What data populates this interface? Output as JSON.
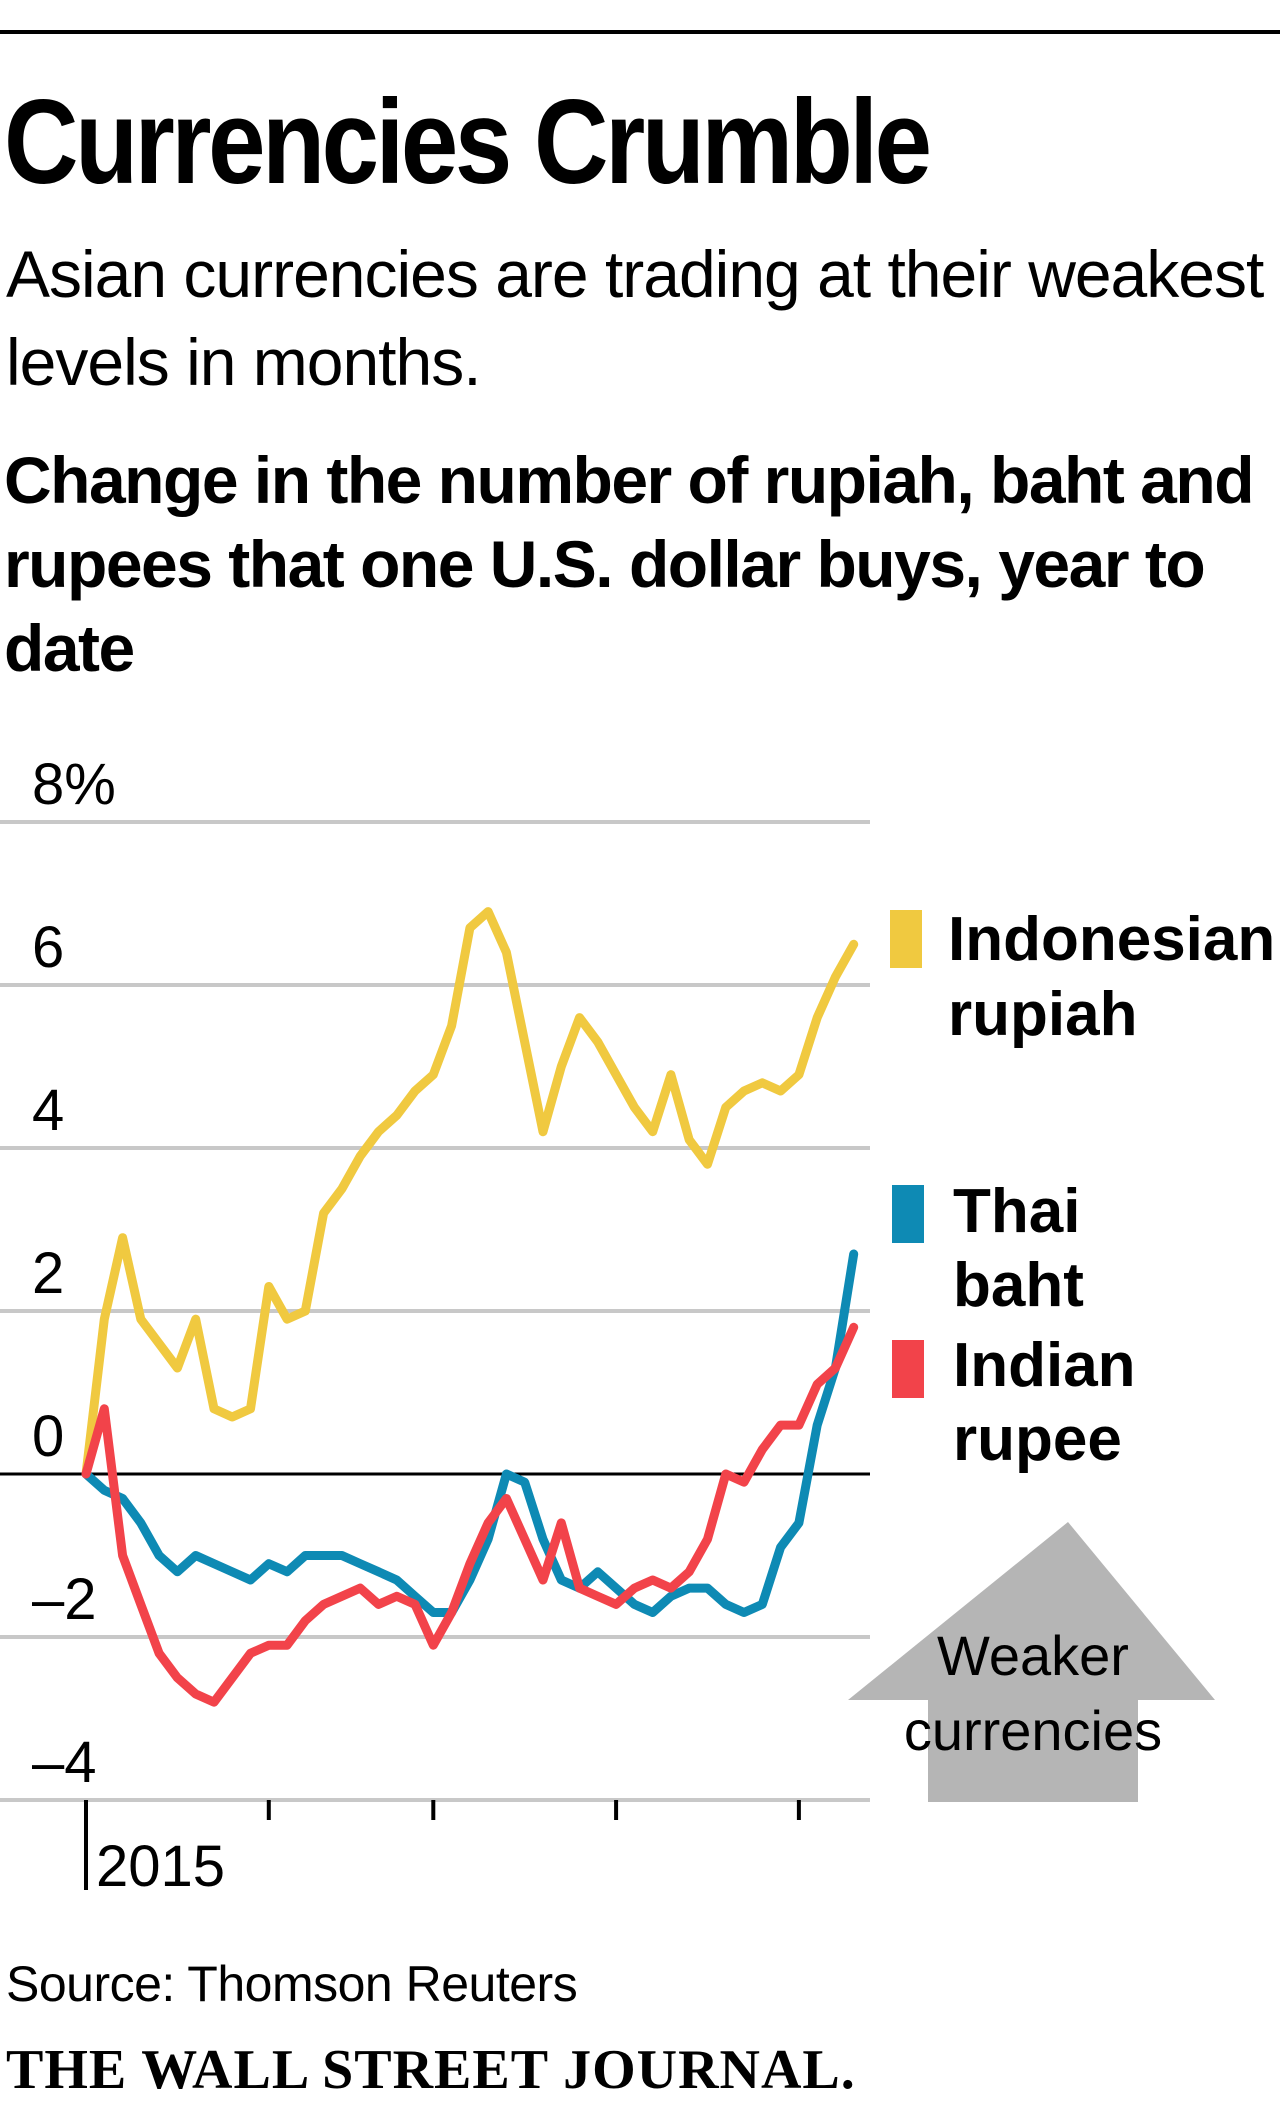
{
  "header": {
    "title": "Currencies Crumble",
    "subtitle": "Asian currencies are trading at their weakest levels in months.",
    "chart_heading": "Change in the number of rupiah, baht and rupees that one U.S. dollar buys, year to date"
  },
  "footer": {
    "source": "Source: Thomson Reuters",
    "publisher": "THE WALL STREET JOURNAL."
  },
  "annotation": {
    "line1": "Weaker",
    "line2": "currencies"
  },
  "chart_data": {
    "type": "line",
    "title": "Change in the number of rupiah, baht and rupees that one U.S. dollar buys, year to date",
    "xlabel": "",
    "ylabel": "",
    "ylim": [
      -4,
      8
    ],
    "yticks": [
      8,
      6,
      4,
      2,
      0,
      -2,
      -4
    ],
    "ytick_labels": [
      "8%",
      "6",
      "4",
      "2",
      "0",
      "–2",
      "–4"
    ],
    "xlim": [
      0,
      43
    ],
    "x_tick_label": "2015",
    "x_tick_weeks": [
      0,
      10,
      19,
      29,
      39
    ],
    "annotation": "Weaker currencies",
    "colors": {
      "gold": "#f0c940",
      "blue": "#0e8ab4",
      "red": "#f2434a",
      "grid": "#c8c8c8",
      "zero": "#000000",
      "arrow": "#b5b5b5"
    },
    "series": [
      {
        "name": "Indonesian rupiah",
        "label_lines": [
          "Indonesian",
          "rupiah"
        ],
        "color": "#f0c940",
        "values": [
          0.0,
          1.9,
          2.9,
          1.9,
          1.6,
          1.3,
          1.9,
          0.8,
          0.7,
          0.8,
          2.3,
          1.9,
          2.0,
          3.2,
          3.5,
          3.9,
          4.2,
          4.4,
          4.7,
          4.9,
          5.5,
          6.7,
          6.9,
          6.4,
          5.3,
          4.2,
          5.0,
          5.6,
          5.3,
          4.9,
          4.5,
          4.2,
          4.9,
          4.1,
          3.8,
          4.5,
          4.7,
          4.8,
          4.7,
          4.9,
          5.6,
          6.1,
          6.5
        ]
      },
      {
        "name": "Thai baht",
        "label_lines": [
          "Thai",
          "baht"
        ],
        "color": "#0e8ab4",
        "values": [
          0.0,
          -0.2,
          -0.3,
          -0.6,
          -1.0,
          -1.2,
          -1.0,
          -1.1,
          -1.2,
          -1.3,
          -1.1,
          -1.2,
          -1.0,
          -1.0,
          -1.0,
          -1.1,
          -1.2,
          -1.3,
          -1.5,
          -1.7,
          -1.7,
          -1.3,
          -0.8,
          0.0,
          -0.1,
          -0.8,
          -1.3,
          -1.4,
          -1.2,
          -1.4,
          -1.6,
          -1.7,
          -1.5,
          -1.4,
          -1.4,
          -1.6,
          -1.7,
          -1.6,
          -0.9,
          -0.6,
          0.6,
          1.3,
          2.7
        ]
      },
      {
        "name": "Indian rupee",
        "label_lines": [
          "Indian",
          "rupee"
        ],
        "color": "#f2434a",
        "values": [
          0.0,
          0.8,
          -1.0,
          -1.6,
          -2.2,
          -2.5,
          -2.7,
          -2.8,
          -2.5,
          -2.2,
          -2.1,
          -2.1,
          -1.8,
          -1.6,
          -1.5,
          -1.4,
          -1.6,
          -1.5,
          -1.6,
          -2.1,
          -1.7,
          -1.1,
          -0.6,
          -0.3,
          -0.8,
          -1.3,
          -0.6,
          -1.4,
          -1.5,
          -1.6,
          -1.4,
          -1.3,
          -1.4,
          -1.2,
          -0.8,
          0.0,
          -0.1,
          0.3,
          0.6,
          0.6,
          1.1,
          1.3,
          1.8
        ]
      }
    ]
  }
}
